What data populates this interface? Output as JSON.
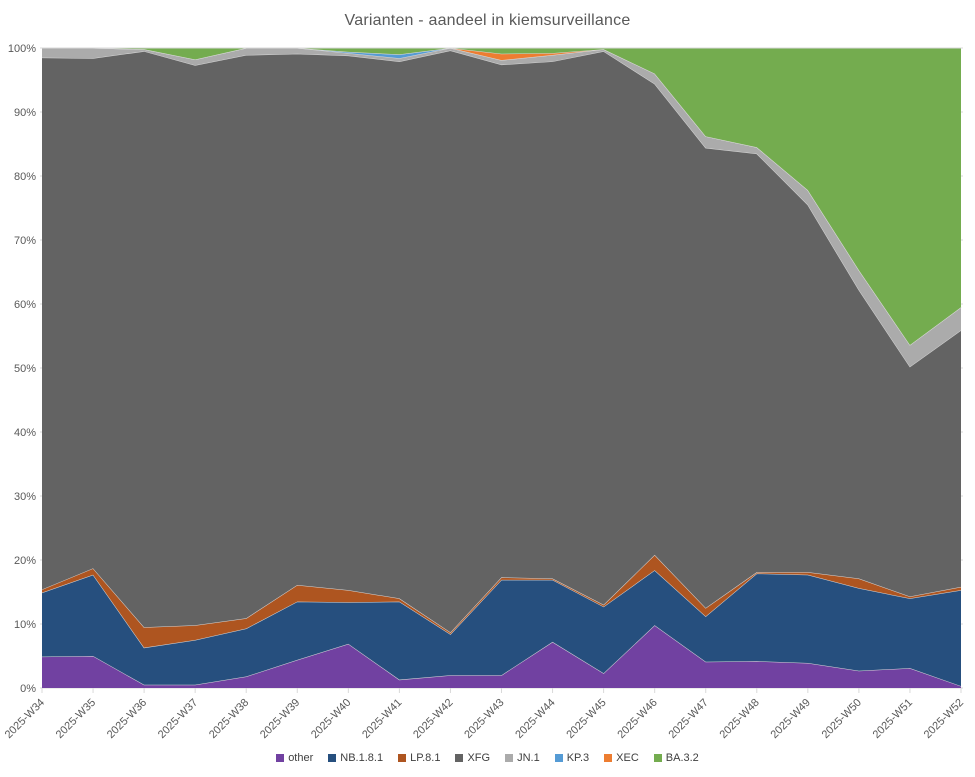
{
  "chart_data": {
    "type": "area",
    "stacking": "percent",
    "title": "Varianten - aandeel in kiemsurveillance",
    "xlabel": "",
    "ylabel": "",
    "ylim": [
      0,
      100
    ],
    "ytick_step": 10,
    "ytick_labels": [
      "0%",
      "10%",
      "20%",
      "30%",
      "40%",
      "50%",
      "60%",
      "70%",
      "80%",
      "90%",
      "100%"
    ],
    "grid": true,
    "legend_position": "bottom",
    "categories": [
      "2025-W34",
      "2025-W35",
      "2025-W36",
      "2025-W37",
      "2025-W38",
      "2025-W39",
      "2025-W40",
      "2025-W41",
      "2025-W42",
      "2025-W43",
      "2025-W44",
      "2025-W45",
      "2025-W46",
      "2025-W47",
      "2025-W48",
      "2025-W49",
      "2025-W50",
      "2025-W51",
      "2025-W52"
    ],
    "series": [
      {
        "name": "other",
        "color": "#7141A1",
        "values": [
          4.9,
          5.0,
          0.5,
          0.5,
          1.8,
          4.4,
          6.9,
          1.3,
          2.0,
          2.0,
          7.2,
          2.3,
          9.8,
          4.1,
          4.2,
          3.9,
          2.7,
          3.1,
          0.3
        ]
      },
      {
        "name": "NB.1.8.1",
        "color": "#264F7E",
        "values": [
          10.0,
          12.7,
          5.8,
          7.0,
          7.5,
          9.1,
          6.5,
          12.2,
          6.4,
          14.9,
          9.7,
          10.4,
          8.6,
          7.1,
          13.7,
          13.8,
          12.9,
          10.9,
          15.0
        ]
      },
      {
        "name": "LP.8.1",
        "color": "#AE5520",
        "values": [
          0.5,
          1.0,
          3.2,
          2.3,
          1.6,
          2.6,
          1.9,
          0.5,
          0.3,
          0.4,
          0.2,
          0.3,
          2.4,
          1.3,
          0.2,
          0.4,
          1.5,
          0.3,
          0.5
        ]
      },
      {
        "name": "XFG",
        "color": "#636363",
        "values": [
          83.1,
          79.7,
          90.0,
          87.5,
          88.0,
          83.0,
          83.5,
          83.9,
          90.9,
          80.1,
          80.8,
          86.5,
          73.6,
          71.9,
          65.4,
          57.4,
          45.1,
          35.9,
          40.1
        ]
      },
      {
        "name": "JN.1",
        "color": "#ABABAB",
        "values": [
          1.5,
          1.6,
          0.3,
          0.9,
          1.1,
          0.9,
          0.4,
          0.5,
          0.4,
          0.7,
          1.0,
          0.3,
          1.6,
          1.8,
          1.0,
          2.3,
          3.1,
          3.4,
          3.6
        ]
      },
      {
        "name": "KP.3",
        "color": "#559BD5",
        "values": [
          0,
          0,
          0,
          0,
          0,
          0,
          0.2,
          0.6,
          0,
          0,
          0,
          0,
          0,
          0,
          0,
          0,
          0,
          0,
          0
        ]
      },
      {
        "name": "XEC",
        "color": "#ED7D31",
        "values": [
          0,
          0,
          0,
          0,
          0,
          0,
          0,
          0,
          0,
          1.0,
          0.3,
          0,
          0,
          0,
          0,
          0,
          0,
          0,
          0
        ]
      },
      {
        "name": "BA.3.2",
        "color": "#74AC4F",
        "values": [
          0,
          0,
          0.2,
          1.8,
          0,
          0,
          0.6,
          1.0,
          0,
          0.9,
          0.8,
          0.2,
          4.0,
          13.8,
          15.5,
          22.2,
          34.7,
          46.4,
          40.5
        ]
      }
    ]
  },
  "styles": {
    "background": "#FFFFFF",
    "axis_text_color": "#595959",
    "grid_color": "#D9D9D9",
    "band_outline_color": "#D9D9D9",
    "legend_text_color": "#404040"
  }
}
